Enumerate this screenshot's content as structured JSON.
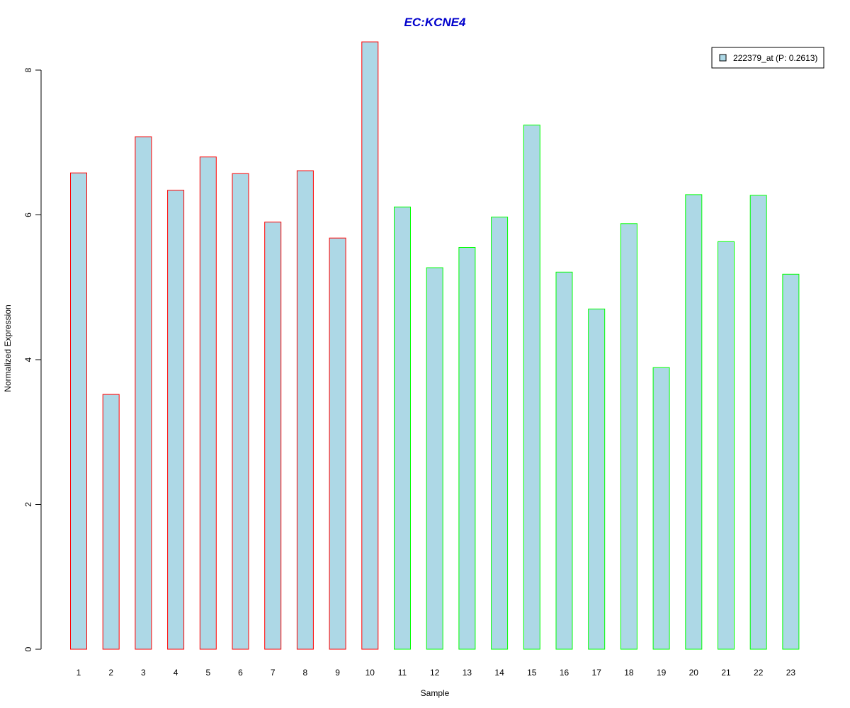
{
  "colors": {
    "title": "#0000cc",
    "bar_fill": "#add8e6",
    "group1_border": "#ff0000",
    "group2_border": "#00ff00",
    "axis": "#000000"
  },
  "chart_data": {
    "type": "bar",
    "title": "EC:KCNE4",
    "xlabel": "Sample",
    "ylabel": "Normalized Expression",
    "ylim": [
      0,
      8.4
    ],
    "yticks": [
      0,
      2,
      4,
      6,
      8
    ],
    "grid": false,
    "legend_position": "top-right",
    "categories": [
      "1",
      "2",
      "3",
      "4",
      "5",
      "6",
      "7",
      "8",
      "9",
      "10",
      "11",
      "12",
      "13",
      "14",
      "15",
      "16",
      "17",
      "18",
      "19",
      "20",
      "21",
      "22",
      "23"
    ],
    "series": [
      {
        "name": "222379_at (P: 0.2613)",
        "values": [
          6.58,
          3.52,
          7.08,
          6.34,
          6.8,
          6.57,
          5.9,
          6.61,
          5.68,
          8.39,
          6.11,
          5.27,
          5.55,
          5.97,
          7.24,
          5.21,
          4.7,
          5.88,
          3.89,
          6.28,
          5.63,
          6.27,
          5.18
        ],
        "groups": [
          1,
          1,
          1,
          1,
          1,
          1,
          1,
          1,
          1,
          1,
          2,
          2,
          2,
          2,
          2,
          2,
          2,
          2,
          2,
          2,
          2,
          2,
          2
        ]
      }
    ]
  }
}
